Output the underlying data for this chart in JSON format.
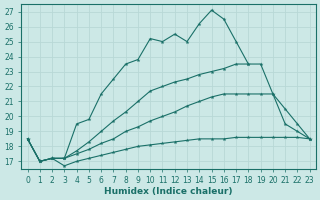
{
  "xlabel": "Humidex (Indice chaleur)",
  "bg_color": "#cce8e6",
  "grid_color": "#b8d8d6",
  "line_color": "#1a7068",
  "xlim": [
    -0.5,
    23.5
  ],
  "ylim": [
    16.5,
    27.5
  ],
  "xticks": [
    0,
    1,
    2,
    3,
    4,
    5,
    6,
    7,
    8,
    9,
    10,
    11,
    12,
    13,
    14,
    15,
    16,
    17,
    18,
    19,
    20,
    21,
    22,
    23
  ],
  "yticks": [
    17,
    18,
    19,
    20,
    21,
    22,
    23,
    24,
    25,
    26,
    27
  ],
  "lines": [
    {
      "x": [
        0,
        1,
        2,
        3,
        4,
        5,
        6,
        7,
        8,
        9,
        10,
        11,
        12,
        13,
        14,
        15,
        16,
        17,
        18
      ],
      "y": [
        18.5,
        17.0,
        17.2,
        17.2,
        19.5,
        19.8,
        21.5,
        22.5,
        23.5,
        23.8,
        25.2,
        25.0,
        25.5,
        25.0,
        26.2,
        27.1,
        26.5,
        25.0,
        23.5
      ]
    },
    {
      "x": [
        0,
        1,
        2,
        3,
        4,
        5,
        6,
        7,
        8,
        9,
        10,
        11,
        12,
        13,
        14,
        15,
        16,
        17,
        18,
        19,
        20,
        21,
        22,
        23
      ],
      "y": [
        18.5,
        17.0,
        17.2,
        17.2,
        17.5,
        17.8,
        18.2,
        18.5,
        19.0,
        19.3,
        19.7,
        20.0,
        20.3,
        20.7,
        21.0,
        21.3,
        21.5,
        21.5,
        21.5,
        21.5,
        21.5,
        20.5,
        19.5,
        18.5
      ]
    },
    {
      "x": [
        0,
        1,
        2,
        3,
        4,
        5,
        6,
        7,
        8,
        9,
        10,
        11,
        12,
        13,
        14,
        15,
        16,
        17,
        18,
        19,
        20,
        21,
        22,
        23
      ],
      "y": [
        18.5,
        17.0,
        17.2,
        16.7,
        17.0,
        17.2,
        17.4,
        17.6,
        17.8,
        18.0,
        18.1,
        18.2,
        18.3,
        18.4,
        18.5,
        18.5,
        18.5,
        18.6,
        18.6,
        18.6,
        18.6,
        18.6,
        18.6,
        18.5
      ]
    },
    {
      "x": [
        0,
        1,
        2,
        3,
        4,
        5,
        6,
        7,
        8,
        9,
        10,
        11,
        12,
        13,
        14,
        15,
        16,
        17,
        18,
        19,
        20,
        21,
        22,
        23
      ],
      "y": [
        18.5,
        17.0,
        17.2,
        17.2,
        17.7,
        18.3,
        19.0,
        19.7,
        20.3,
        21.0,
        21.7,
        22.0,
        22.3,
        22.5,
        22.8,
        23.0,
        23.2,
        23.5,
        23.5,
        23.5,
        21.5,
        19.5,
        19.0,
        18.5
      ]
    }
  ]
}
